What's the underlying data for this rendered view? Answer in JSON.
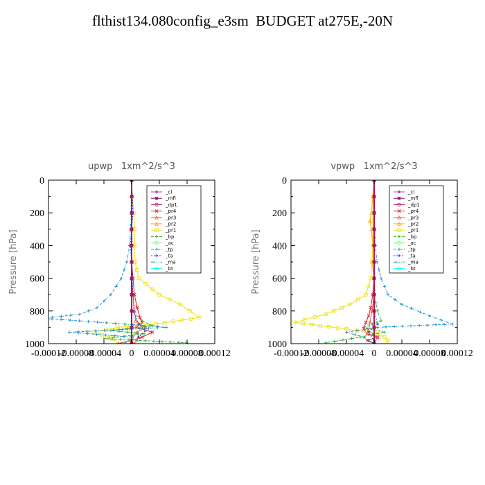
{
  "title": "flthist134.080config_e3sm  BUDGET at275E,-20N",
  "legend_labels": [
    "_cl",
    "_mfl",
    "_dp1",
    "_pr4",
    "_pr3",
    "_pr2",
    "_pr1",
    "_bp",
    "_ac",
    "_tp",
    "_ta",
    "_ma",
    "_bt"
  ],
  "legend_colors": [
    "#a040d0",
    "#800060",
    "#b0105a",
    "#d81c1c",
    "#ff5050",
    "#ffa000",
    "#f0e000",
    "#30b030",
    "#60ff60",
    "#1e90c8",
    "#2040ff",
    "#208080",
    "#00ffff"
  ],
  "chart_data": [
    {
      "type": "line",
      "title": "upwp   1xm^2/s^3",
      "ylabel": "Pressure [hPa]",
      "xlim": [
        -0.00012,
        0.00012
      ],
      "ylim": [
        1000,
        0
      ],
      "x_ticks": [
        "-0.00012",
        "-0.00008",
        "-0.00004",
        "0",
        "0.00004",
        "0.00008",
        "0.00012"
      ],
      "y_ticks": [
        "0",
        "200",
        "400",
        "600",
        "800",
        "1000"
      ],
      "legend_position": "top-right",
      "series": [
        {
          "name": "_cl",
          "x": [
            0,
            0,
            0,
            0,
            0,
            0,
            0,
            0,
            0,
            0,
            0
          ],
          "y": [
            0,
            100,
            200,
            300,
            400,
            500,
            600,
            700,
            800,
            900,
            1000
          ]
        },
        {
          "name": "_mfl",
          "x": [
            0,
            0,
            0,
            0,
            0,
            0,
            0,
            0,
            0,
            0,
            0
          ],
          "y": [
            0,
            100,
            200,
            300,
            400,
            500,
            600,
            700,
            800,
            900,
            1000
          ]
        },
        {
          "name": "_dp1",
          "x": [
            0,
            0,
            0,
            0,
            0,
            0,
            0,
            0,
            0,
            0,
            0
          ],
          "y": [
            0,
            100,
            200,
            300,
            400,
            500,
            600,
            700,
            800,
            900,
            1000
          ]
        },
        {
          "name": "_pr4",
          "x": [
            0,
            0,
            0,
            0,
            0,
            0,
            2e-06,
            4e-06,
            8e-06,
            1.2e-05,
            1.5e-05,
            8e-06,
            3e-05,
            1.5e-05,
            0,
            -2e-05
          ],
          "y": [
            0,
            100,
            200,
            300,
            400,
            500,
            600,
            700,
            780,
            840,
            870,
            900,
            930,
            960,
            980,
            1000
          ]
        },
        {
          "name": "_pr3",
          "x": [
            0,
            0,
            0,
            0,
            0,
            0,
            0,
            2e-06,
            4e-06,
            6e-06,
            2e-05,
            8e-06,
            1e-05,
            4e-06
          ],
          "y": [
            0,
            100,
            200,
            300,
            400,
            500,
            600,
            700,
            800,
            860,
            900,
            930,
            960,
            1000
          ]
        },
        {
          "name": "_pr2",
          "x": [
            0,
            0,
            0,
            0,
            0,
            0,
            0,
            0,
            0,
            0,
            0,
            0
          ],
          "y": [
            0,
            100,
            200,
            300,
            400,
            500,
            600,
            700,
            800,
            900,
            950,
            1000
          ]
        },
        {
          "name": "_pr1",
          "x": [
            0,
            1e-06,
            3e-06,
            4e-06,
            4e-06,
            5e-06,
            1e-05,
            4e-05,
            7e-05,
            9.8e-05,
            3.5e-05,
            -2e-05,
            -5.5e-05,
            -3e-05,
            -2e-05
          ],
          "y": [
            0,
            100,
            200,
            300,
            400,
            500,
            600,
            700,
            760,
            840,
            880,
            900,
            930,
            960,
            1000
          ]
        },
        {
          "name": "_bp",
          "x": [
            0,
            0,
            0,
            0,
            0,
            0,
            0,
            0,
            0,
            1.5e-05,
            3e-05,
            -3e-05,
            1.8e-05,
            -4e-05,
            8e-05
          ],
          "y": [
            0,
            100,
            200,
            300,
            400,
            500,
            600,
            700,
            800,
            860,
            890,
            920,
            940,
            970,
            995
          ]
        },
        {
          "name": "_ac",
          "x": [
            0,
            0,
            0,
            0,
            0,
            0,
            0,
            0,
            0,
            0,
            0
          ],
          "y": [
            0,
            100,
            200,
            300,
            400,
            500,
            600,
            700,
            800,
            900,
            1000
          ]
        },
        {
          "name": "_tp",
          "x": [
            0,
            1e-06,
            0,
            -2e-06,
            -3e-06,
            -7e-06,
            -1.5e-05,
            -3e-05,
            -5e-05,
            -7.5e-05,
            -0.000128,
            -1e-05,
            5e-05,
            -9e-05,
            2e-06,
            -1e-05
          ],
          "y": [
            0,
            100,
            200,
            300,
            400,
            500,
            600,
            700,
            780,
            820,
            845,
            880,
            900,
            930,
            960,
            1000
          ]
        },
        {
          "name": "_ta",
          "x": [
            0,
            1e-06,
            2e-06,
            0,
            -2e-06,
            0,
            1e-06,
            2e-06,
            3e-06,
            1e-05,
            2e-05,
            1e-05
          ],
          "y": [
            0,
            100,
            200,
            300,
            400,
            500,
            600,
            700,
            800,
            880,
            920,
            960
          ]
        },
        {
          "name": "_ma",
          "x": [
            0,
            0,
            0,
            0,
            0,
            0,
            0,
            0,
            0,
            0,
            0
          ],
          "y": [
            0,
            100,
            200,
            300,
            400,
            500,
            600,
            700,
            800,
            900,
            1000
          ]
        },
        {
          "name": "_bt",
          "x": [
            0,
            0,
            0,
            0,
            0,
            0,
            0,
            0,
            0,
            0,
            0
          ],
          "y": [
            0,
            100,
            200,
            300,
            400,
            500,
            600,
            700,
            800,
            900,
            1000
          ]
        }
      ]
    },
    {
      "type": "line",
      "title": "vpwp   1xm^2/s^3",
      "ylabel": "Pressure [hPa]",
      "xlim": [
        -0.00012,
        0.00012
      ],
      "ylim": [
        1000,
        0
      ],
      "x_ticks": [
        "-0.00012",
        "-0.00008",
        "-0.00004",
        "0",
        "0.00004",
        "0.00008",
        "0.00012"
      ],
      "y_ticks": [
        "0",
        "200",
        "400",
        "600",
        "800",
        "1000"
      ],
      "legend_position": "top-right",
      "series": [
        {
          "name": "_cl",
          "x": [
            0,
            0,
            0,
            0,
            0,
            0,
            0,
            0,
            0,
            0,
            0
          ],
          "y": [
            0,
            100,
            200,
            300,
            400,
            500,
            600,
            700,
            800,
            900,
            1000
          ]
        },
        {
          "name": "_mfl",
          "x": [
            0,
            0,
            0,
            0,
            0,
            0,
            0,
            0,
            0,
            0,
            0
          ],
          "y": [
            0,
            100,
            200,
            300,
            400,
            500,
            600,
            700,
            800,
            900,
            1000
          ]
        },
        {
          "name": "_dp1",
          "x": [
            0,
            0,
            0,
            0,
            0,
            0,
            0,
            0,
            0,
            0,
            0
          ],
          "y": [
            0,
            100,
            200,
            300,
            400,
            500,
            600,
            700,
            800,
            900,
            1000
          ]
        },
        {
          "name": "_pr4",
          "x": [
            0,
            0,
            0,
            0,
            0,
            0,
            0,
            -2e-06,
            -5e-06,
            -8e-06,
            -1.2e-05,
            -1.5e-05,
            -1e-05,
            5e-06,
            -1e-05,
            0
          ],
          "y": [
            0,
            100,
            200,
            300,
            400,
            500,
            600,
            700,
            780,
            830,
            870,
            910,
            940,
            960,
            980,
            1000
          ]
        },
        {
          "name": "_pr3",
          "x": [
            0,
            0,
            0,
            0,
            0,
            0,
            0,
            0,
            -3e-06,
            -6e-06,
            -8e-06,
            5e-06,
            0
          ],
          "y": [
            0,
            100,
            200,
            300,
            400,
            500,
            600,
            700,
            800,
            870,
            920,
            960,
            1000
          ]
        },
        {
          "name": "_pr2",
          "x": [
            0,
            -2e-06,
            -4e-06,
            -6e-06,
            -4e-06,
            -2e-06,
            -3e-06,
            0,
            0,
            0,
            0
          ],
          "y": [
            0,
            100,
            200,
            250,
            300,
            400,
            500,
            600,
            800,
            900,
            1000
          ]
        },
        {
          "name": "_pr1",
          "x": [
            0,
            -1e-06,
            -2e-06,
            -2e-06,
            -2e-06,
            -3e-06,
            -5e-06,
            -1.2e-05,
            -3.5e-05,
            -7e-05,
            -0.000115,
            -4e-05,
            5e-06,
            1.5e-05,
            2e-05,
            1.8e-05
          ],
          "y": [
            0,
            100,
            200,
            300,
            400,
            500,
            600,
            700,
            760,
            820,
            870,
            910,
            940,
            960,
            980,
            1000
          ]
        },
        {
          "name": "_bp",
          "x": [
            0,
            0,
            0,
            0,
            0,
            0,
            0,
            0,
            5e-06,
            1e-05,
            -1.5e-05,
            1.5e-05,
            -2e-05,
            -7e-05
          ],
          "y": [
            0,
            100,
            200,
            300,
            400,
            500,
            600,
            700,
            800,
            860,
            900,
            930,
            960,
            995
          ]
        },
        {
          "name": "_ac",
          "x": [
            0,
            0,
            0,
            0,
            0,
            0,
            0,
            0,
            0,
            0,
            0
          ],
          "y": [
            0,
            100,
            200,
            300,
            400,
            500,
            600,
            700,
            800,
            900,
            1000
          ]
        },
        {
          "name": "_tp",
          "x": [
            0,
            0,
            0,
            1e-06,
            2e-06,
            4e-06,
            1e-05,
            2e-05,
            4e-05,
            8e-05,
            0.000113,
            5e-06,
            -4e-05,
            -1.5e-05,
            0
          ],
          "y": [
            0,
            100,
            200,
            300,
            400,
            500,
            600,
            700,
            760,
            830,
            880,
            900,
            930,
            960,
            1000
          ]
        },
        {
          "name": "_ta",
          "x": [
            0,
            0,
            1e-06,
            0,
            0,
            0,
            0,
            0,
            0,
            5e-06,
            -8e-06,
            0
          ],
          "y": [
            0,
            100,
            200,
            300,
            400,
            500,
            600,
            700,
            800,
            880,
            930,
            980
          ]
        },
        {
          "name": "_ma",
          "x": [
            0,
            0,
            0,
            0,
            0,
            0,
            0,
            0,
            0,
            0,
            0
          ],
          "y": [
            0,
            100,
            200,
            300,
            400,
            500,
            600,
            700,
            800,
            900,
            1000
          ]
        },
        {
          "name": "_bt",
          "x": [
            0,
            0,
            0,
            0,
            0,
            0,
            0,
            0,
            0,
            0,
            0
          ],
          "y": [
            0,
            100,
            200,
            300,
            400,
            500,
            600,
            700,
            800,
            900,
            1000
          ]
        }
      ]
    }
  ]
}
